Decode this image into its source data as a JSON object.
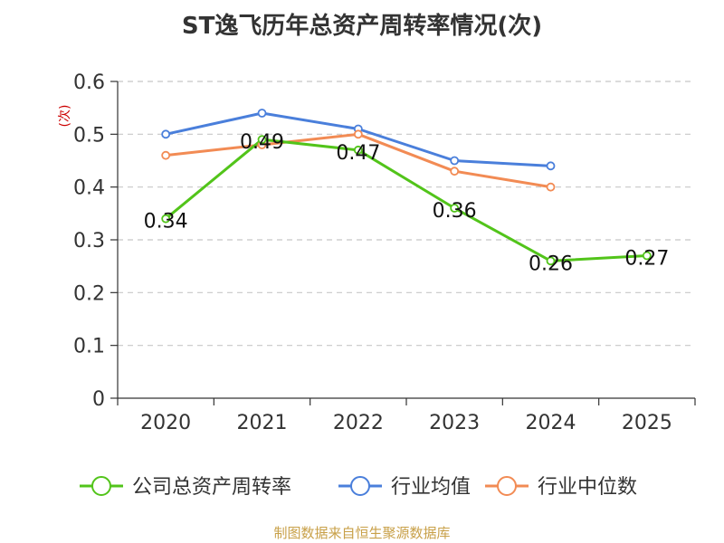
{
  "chart_data": {
    "type": "line",
    "title": "ST逸飞历年总资产周转率情况(次)",
    "ylabel": "(次)",
    "xlabel": "",
    "categories": [
      "2020",
      "2021",
      "2022",
      "2023",
      "2024",
      "2025"
    ],
    "ylim": [
      0,
      0.6
    ],
    "yticks": [
      "0",
      "0.1",
      "0.2",
      "0.3",
      "0.4",
      "0.5",
      "0.6"
    ],
    "grid": true,
    "legend_position": "bottom",
    "series": [
      {
        "name": "公司总资产周转率",
        "color": "#52c41a",
        "values": [
          0.34,
          0.49,
          0.47,
          0.36,
          0.26,
          0.27
        ],
        "labels": [
          "0.34",
          "0.49",
          "0.47",
          "0.36",
          "0.26",
          "0.27"
        ]
      },
      {
        "name": "行业均值",
        "color": "#4a7fdb",
        "values": [
          0.5,
          0.54,
          0.51,
          0.45,
          0.44,
          null
        ]
      },
      {
        "name": "行业中位数",
        "color": "#f28b54",
        "values": [
          0.46,
          0.48,
          0.5,
          0.43,
          0.4,
          null
        ]
      }
    ]
  },
  "source_text": "制图数据来自恒生聚源数据库"
}
